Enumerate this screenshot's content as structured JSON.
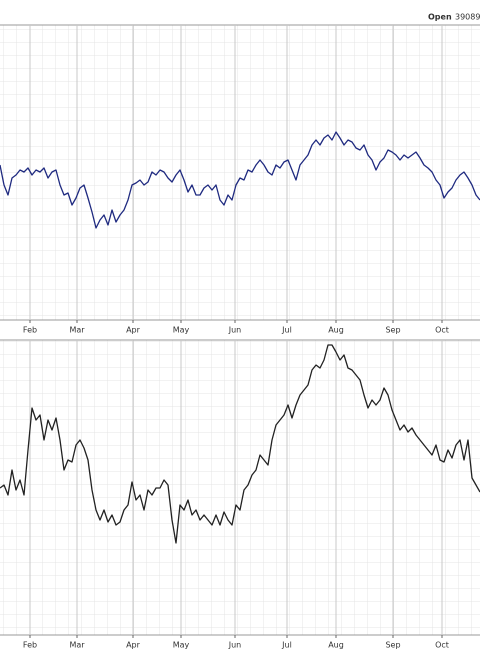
{
  "header": {
    "label": "Open",
    "value": "39089"
  },
  "chart_data": [
    {
      "type": "line",
      "x": [
        0,
        4,
        8,
        12,
        16,
        20,
        24,
        28,
        32,
        36,
        40,
        44,
        48,
        52,
        56,
        60,
        64,
        68,
        72,
        76,
        80,
        84,
        88,
        92,
        96,
        100,
        104,
        108,
        112,
        116,
        120,
        124,
        128,
        132,
        136,
        140,
        144,
        148,
        152,
        156,
        160,
        164,
        168,
        172,
        176,
        180,
        184,
        188,
        192,
        196,
        200,
        204,
        208,
        212,
        216,
        220,
        224,
        228,
        232,
        236,
        240,
        244,
        248,
        252,
        256,
        260,
        264,
        268,
        272,
        276,
        280,
        284,
        288,
        292,
        296,
        300,
        304,
        308,
        312,
        316,
        320,
        324,
        328,
        332,
        336,
        340,
        344,
        348,
        352,
        356,
        360,
        364,
        368,
        372,
        376,
        380,
        384,
        388,
        392,
        396,
        400,
        404,
        408,
        412,
        416,
        420,
        424,
        428,
        432,
        436,
        440,
        444,
        448,
        452,
        456,
        460,
        464,
        468,
        472,
        476,
        480
      ],
      "series": [
        {
          "color": "#1f2a80",
          "values": [
            155,
            135,
            125,
            142,
            145,
            150,
            148,
            152,
            145,
            150,
            148,
            152,
            142,
            148,
            150,
            135,
            125,
            127,
            115,
            122,
            132,
            135,
            122,
            108,
            92,
            100,
            105,
            95,
            110,
            98,
            105,
            110,
            120,
            135,
            137,
            140,
            135,
            138,
            148,
            145,
            150,
            148,
            142,
            138,
            145,
            150,
            140,
            128,
            135,
            125,
            125,
            132,
            135,
            130,
            135,
            120,
            115,
            125,
            120,
            135,
            142,
            140,
            150,
            148,
            155,
            160,
            155,
            148,
            145,
            155,
            152,
            158,
            160,
            150,
            140,
            155,
            160,
            165,
            175,
            180,
            175,
            182,
            185,
            180,
            188,
            182,
            175,
            180,
            178,
            172,
            170,
            175,
            165,
            160,
            150,
            158,
            162,
            170,
            168,
            165,
            160,
            165,
            162,
            165,
            168,
            162,
            155,
            152,
            148,
            140,
            135,
            122,
            128,
            132,
            140,
            145,
            148,
            142,
            135,
            125,
            120
          ]
        }
      ],
      "xlim": [
        0,
        480
      ],
      "ylim": [
        0,
        295
      ],
      "xticks": [
        {
          "value": 30,
          "label": "Feb"
        },
        {
          "value": 77,
          "label": "Mar"
        },
        {
          "value": 133,
          "label": "Apr"
        },
        {
          "value": 181,
          "label": "May"
        },
        {
          "value": 235,
          "label": "Jun"
        },
        {
          "value": 287,
          "label": "Jul"
        },
        {
          "value": 336,
          "label": "Aug"
        },
        {
          "value": 393,
          "label": "Sep"
        },
        {
          "value": 442,
          "label": "Oct"
        }
      ],
      "grid": true
    },
    {
      "type": "line",
      "x": [
        0,
        4,
        8,
        12,
        16,
        20,
        24,
        28,
        32,
        36,
        40,
        44,
        48,
        52,
        56,
        60,
        64,
        68,
        72,
        76,
        80,
        84,
        88,
        92,
        96,
        100,
        104,
        108,
        112,
        116,
        120,
        124,
        128,
        132,
        136,
        140,
        144,
        148,
        152,
        156,
        160,
        164,
        168,
        172,
        176,
        180,
        184,
        188,
        192,
        196,
        200,
        204,
        208,
        212,
        216,
        220,
        224,
        228,
        232,
        236,
        240,
        244,
        248,
        252,
        256,
        260,
        264,
        268,
        272,
        276,
        280,
        284,
        288,
        292,
        296,
        300,
        304,
        308,
        312,
        316,
        320,
        324,
        328,
        332,
        336,
        340,
        344,
        348,
        352,
        356,
        360,
        364,
        368,
        372,
        376,
        380,
        384,
        388,
        392,
        396,
        400,
        404,
        408,
        412,
        416,
        420,
        424,
        428,
        432,
        436,
        440,
        444,
        448,
        452,
        456,
        460,
        464,
        468,
        472,
        476,
        480
      ],
      "series": [
        {
          "color": "#222222",
          "values": [
            147,
            150,
            140,
            165,
            145,
            155,
            140,
            185,
            227,
            215,
            220,
            195,
            215,
            205,
            217,
            195,
            165,
            175,
            173,
            190,
            195,
            187,
            175,
            145,
            125,
            115,
            125,
            113,
            120,
            110,
            113,
            125,
            130,
            153,
            135,
            140,
            125,
            145,
            140,
            147,
            147,
            155,
            150,
            115,
            92,
            130,
            125,
            135,
            120,
            125,
            115,
            120,
            115,
            110,
            120,
            110,
            123,
            115,
            110,
            130,
            125,
            145,
            150,
            160,
            165,
            180,
            175,
            170,
            195,
            210,
            215,
            220,
            230,
            217,
            230,
            240,
            245,
            250,
            265,
            270,
            267,
            275,
            290,
            290,
            283,
            275,
            280,
            267,
            265,
            260,
            255,
            240,
            227,
            235,
            230,
            235,
            247,
            240,
            225,
            215,
            205,
            210,
            203,
            207,
            200,
            195,
            190,
            185,
            180,
            190,
            175,
            173,
            185,
            177,
            190,
            195,
            175,
            195,
            157,
            150,
            143
          ]
        }
      ],
      "xlim": [
        0,
        480
      ],
      "ylim": [
        0,
        295
      ],
      "xticks": [
        {
          "value": 30,
          "label": "Feb"
        },
        {
          "value": 77,
          "label": "Mar"
        },
        {
          "value": 133,
          "label": "Apr"
        },
        {
          "value": 181,
          "label": "May"
        },
        {
          "value": 235,
          "label": "Jun"
        },
        {
          "value": 287,
          "label": "Jul"
        },
        {
          "value": 336,
          "label": "Aug"
        },
        {
          "value": 393,
          "label": "Sep"
        },
        {
          "value": 442,
          "label": "Oct"
        }
      ],
      "grid": true
    }
  ]
}
